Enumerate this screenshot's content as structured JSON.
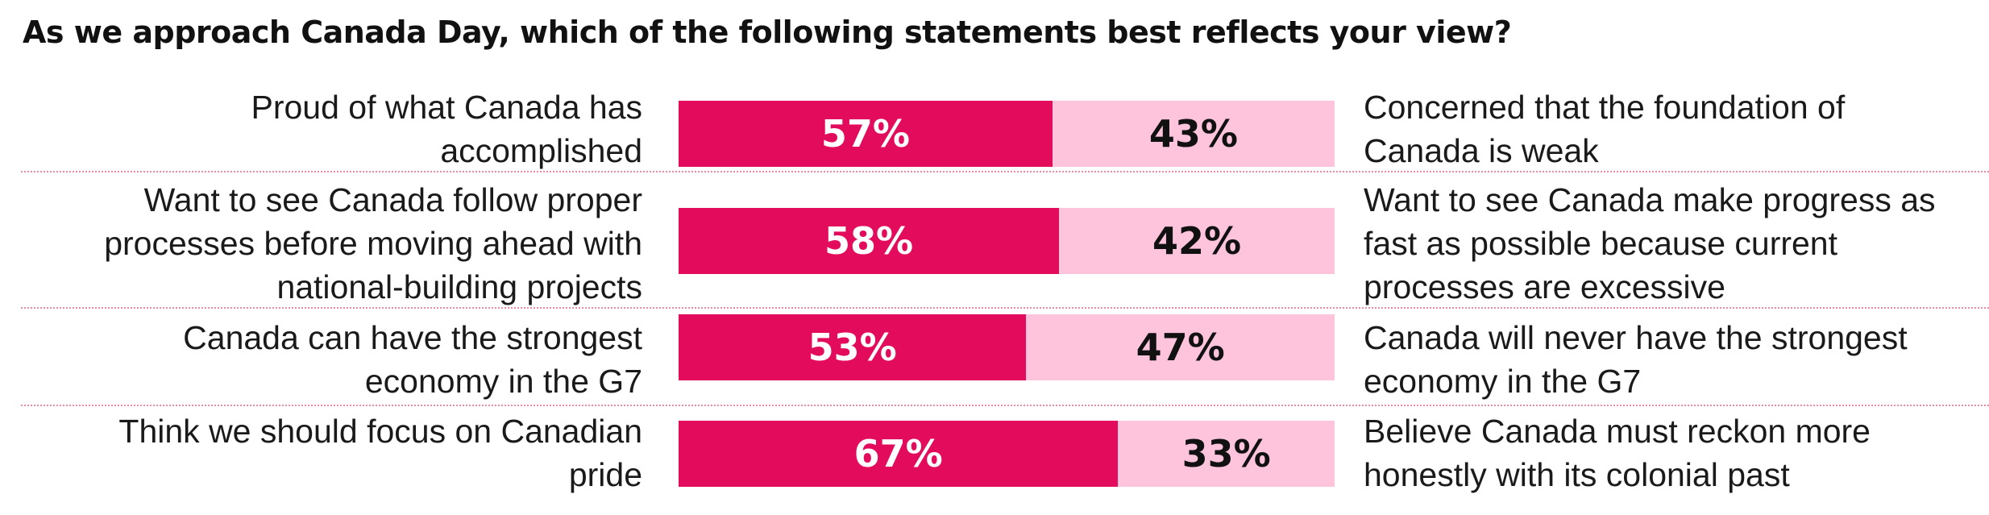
{
  "title": "As we approach Canada Day, which of the following statements best reflects your view?",
  "colors": {
    "agree": "#e30b5c",
    "other": "#fdc4dc"
  },
  "chart_data": {
    "type": "bar",
    "orientation": "horizontal",
    "stacked": true,
    "title": "As we approach Canada Day, which of the following statements best reflects your view?",
    "xlim": [
      0,
      100
    ],
    "rows": [
      {
        "left_lines": [
          "Proud of what Canada has",
          "accomplished"
        ],
        "right_lines": [
          "Concerned that the foundation of",
          "Canada is weak"
        ],
        "left_value": 57,
        "right_value": 43,
        "left_label": "57%",
        "right_label": "43%"
      },
      {
        "left_lines": [
          "Want to see Canada follow proper",
          "processes before moving ahead with",
          "national-building projects"
        ],
        "right_lines": [
          "Want to see Canada make progress as",
          "fast as possible because current",
          "processes are excessive"
        ],
        "left_value": 58,
        "right_value": 42,
        "left_label": "58%",
        "right_label": "42%"
      },
      {
        "left_lines": [
          "Canada can have the strongest",
          "economy in the G7"
        ],
        "right_lines": [
          "Canada will never have the strongest",
          "economy in the G7"
        ],
        "left_value": 53,
        "right_value": 47,
        "left_label": "53%",
        "right_label": "47%"
      },
      {
        "left_lines": [
          "Think we should focus on Canadian",
          "pride"
        ],
        "right_lines": [
          "Believe Canada must reckon more",
          "honestly with its colonial past"
        ],
        "left_value": 67,
        "right_value": 33,
        "left_label": "67%",
        "right_label": "33%"
      }
    ]
  }
}
